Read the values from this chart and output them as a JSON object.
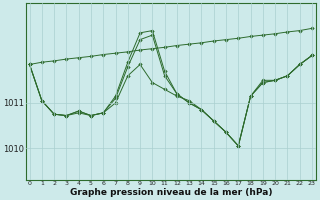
{
  "background_color": "#cdeaea",
  "grid_color": "#aacfcf",
  "line_color": "#2d6b2d",
  "marker_color": "#2d6b2d",
  "xlabel": "Graphe pression niveau de la mer (hPa)",
  "xlabel_fontsize": 6.5,
  "x_ticks": [
    0,
    1,
    2,
    3,
    4,
    5,
    6,
    7,
    8,
    9,
    10,
    11,
    12,
    13,
    14,
    15,
    16,
    17,
    18,
    19,
    20,
    21,
    22,
    23
  ],
  "y_ticks": [
    1010,
    1011
  ],
  "ylim": [
    1009.3,
    1013.2
  ],
  "xlim": [
    -0.3,
    23.3
  ],
  "series": [
    [
      1011.85,
      1011.9,
      1011.93,
      1011.97,
      1012.0,
      1012.03,
      1012.07,
      1012.1,
      1012.13,
      1012.17,
      1012.2,
      1012.23,
      1012.27,
      1012.3,
      1012.33,
      1012.37,
      1012.4,
      1012.43,
      1012.47,
      1012.5,
      1012.53,
      1012.57,
      1012.6,
      1012.65
    ],
    [
      1011.85,
      1011.05,
      1010.75,
      1010.72,
      1010.78,
      1010.72,
      1010.78,
      1011.0,
      1011.6,
      1011.85,
      1011.45,
      1011.3,
      1011.15,
      1011.05,
      1010.85,
      1010.6,
      1010.35,
      1010.05,
      1011.15,
      1011.5,
      1011.5,
      1011.6,
      1011.85,
      1012.05
    ],
    [
      1011.85,
      1011.05,
      1010.75,
      1010.72,
      1010.82,
      1010.72,
      1010.78,
      1011.1,
      1011.8,
      1012.4,
      1012.5,
      1011.6,
      1011.2,
      1011.0,
      1010.85,
      1010.6,
      1010.35,
      1010.05,
      1011.15,
      1011.45,
      1011.5,
      1011.6,
      1011.85,
      1012.05
    ],
    [
      1011.85,
      1011.05,
      1010.75,
      1010.72,
      1010.82,
      1010.72,
      1010.78,
      1011.15,
      1011.9,
      1012.55,
      1012.6,
      1011.7,
      1011.2,
      1011.0,
      1010.85,
      1010.6,
      1010.35,
      1010.05,
      1011.15,
      1011.45,
      1011.5,
      1011.6,
      1011.85,
      1012.05
    ]
  ]
}
